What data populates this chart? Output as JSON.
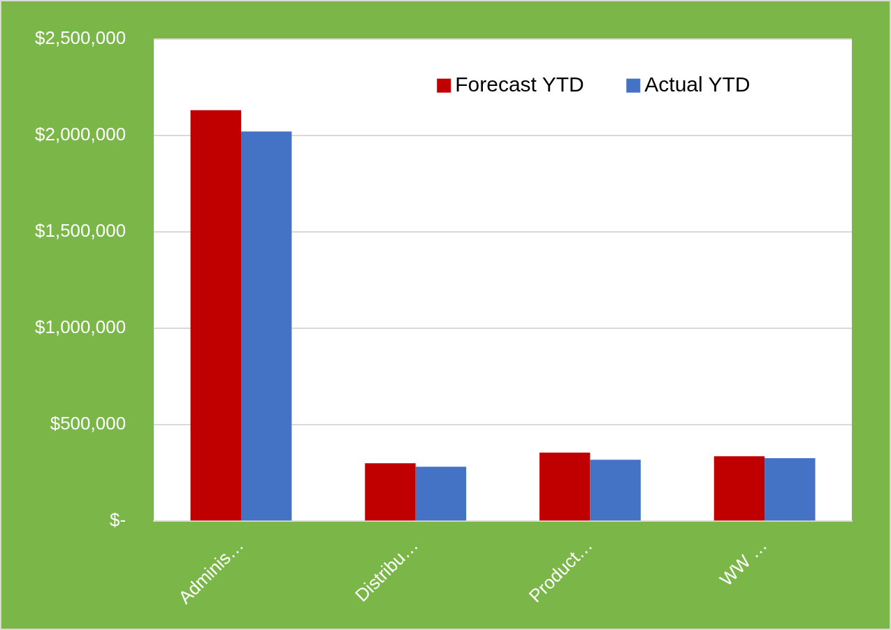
{
  "chart_data": {
    "type": "bar",
    "categories": [
      "Adminis…",
      "Distribu…",
      "Product…",
      "WW …"
    ],
    "series": [
      {
        "name": "Forecast YTD",
        "color": "#c00000",
        "values": [
          2130000,
          300000,
          355000,
          336000
        ]
      },
      {
        "name": "Actual YTD",
        "color": "#4472c4",
        "values": [
          2020000,
          282000,
          318000,
          326000
        ]
      }
    ],
    "ylim": [
      0,
      2500000
    ],
    "yticks": [
      {
        "value": 0,
        "label": "$-"
      },
      {
        "value": 500000,
        "label": "$500,000"
      },
      {
        "value": 1000000,
        "label": "$1,000,000"
      },
      {
        "value": 1500000,
        "label": "$1,500,000"
      },
      {
        "value": 2000000,
        "label": "$2,000,000"
      },
      {
        "value": 2500000,
        "label": "$2,500,000"
      }
    ],
    "grid": "y",
    "legend": "top right"
  }
}
